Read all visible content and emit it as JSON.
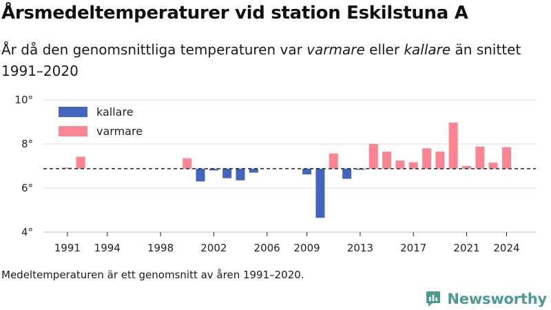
{
  "title": "Årsmedeltemperaturer vid station Eskilstuna A",
  "subtitle": {
    "part1": "År då den genomsnittliga temperaturen var ",
    "em1": "varmare",
    "part2": " eller ",
    "em2": "kallare",
    "part3": " än snittet 1991–2020"
  },
  "footnote": "Medeltemperaturen är ett genomsnitt av åren 1991–2020.",
  "brand": "Newsworthy",
  "colors": {
    "kallare": "#4465be",
    "varmare": "#fd8491",
    "baseline": "#333333",
    "grid": "#dddddd",
    "brand": "#4d9a92"
  },
  "chart_data": {
    "type": "bar",
    "baseline": 6.88,
    "ylim": [
      4,
      10
    ],
    "yticks": [
      {
        "value": 4,
        "label": "4°"
      },
      {
        "value": 6,
        "label": "6°"
      },
      {
        "value": 8,
        "label": "8°"
      },
      {
        "value": 10,
        "label": "10°"
      }
    ],
    "xlim": [
      1989.2,
      2026.2
    ],
    "xticks": [
      1991,
      1994,
      1998,
      2002,
      2006,
      2009,
      2013,
      2017,
      2021,
      2024
    ],
    "legend": [
      {
        "key": "kallare",
        "label": "kallare"
      },
      {
        "key": "varmare",
        "label": "varmare"
      }
    ],
    "legend_position": "top-left",
    "grid": true,
    "points": [
      {
        "year": 1991,
        "value": 6.93,
        "category": "varmare"
      },
      {
        "year": 1992,
        "value": 7.42,
        "category": "varmare"
      },
      {
        "year": 2000,
        "value": 7.35,
        "category": "varmare"
      },
      {
        "year": 2001,
        "value": 6.3,
        "category": "kallare"
      },
      {
        "year": 2002,
        "value": 6.8,
        "category": "kallare"
      },
      {
        "year": 2003,
        "value": 6.45,
        "category": "kallare"
      },
      {
        "year": 2004,
        "value": 6.35,
        "category": "kallare"
      },
      {
        "year": 2005,
        "value": 6.7,
        "category": "kallare"
      },
      {
        "year": 2009,
        "value": 6.62,
        "category": "kallare"
      },
      {
        "year": 2010,
        "value": 4.65,
        "category": "kallare"
      },
      {
        "year": 2011,
        "value": 7.57,
        "category": "varmare"
      },
      {
        "year": 2012,
        "value": 6.42,
        "category": "kallare"
      },
      {
        "year": 2013,
        "value": 6.83,
        "category": "kallare"
      },
      {
        "year": 2014,
        "value": 8.0,
        "category": "varmare"
      },
      {
        "year": 2015,
        "value": 7.65,
        "category": "varmare"
      },
      {
        "year": 2016,
        "value": 7.25,
        "category": "varmare"
      },
      {
        "year": 2017,
        "value": 7.17,
        "category": "varmare"
      },
      {
        "year": 2018,
        "value": 7.8,
        "category": "varmare"
      },
      {
        "year": 2019,
        "value": 7.65,
        "category": "varmare"
      },
      {
        "year": 2020,
        "value": 8.97,
        "category": "varmare"
      },
      {
        "year": 2021,
        "value": 7.0,
        "category": "varmare"
      },
      {
        "year": 2022,
        "value": 7.88,
        "category": "varmare"
      },
      {
        "year": 2023,
        "value": 7.15,
        "category": "varmare"
      },
      {
        "year": 2024,
        "value": 7.85,
        "category": "varmare"
      }
    ]
  }
}
